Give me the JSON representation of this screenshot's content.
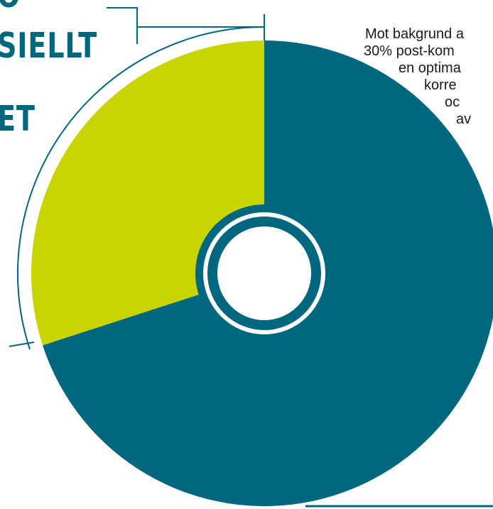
{
  "colors": {
    "primary": "#01677e",
    "secondary": "#c9d400",
    "text": "#1a1a1a",
    "heading": "#01677e",
    "bracket": "#01677e",
    "center": "#ffffff"
  },
  "heading_lines": [
    "O",
    "SIELLT",
    "ET"
  ],
  "body_lines": [
    "Mot bakgrund a",
    "30% post-kom",
    "en optima",
    "korre",
    "oc",
    "av"
  ],
  "chart_data": {
    "type": "pie",
    "title": "",
    "slices": [
      {
        "label": "",
        "value": 70,
        "color": "#01677e"
      },
      {
        "label": "",
        "value": 30,
        "color": "#c9d400"
      }
    ],
    "start_angle": "12 o'clock",
    "direction": "clockwise",
    "center": "white circle with teal ring"
  }
}
